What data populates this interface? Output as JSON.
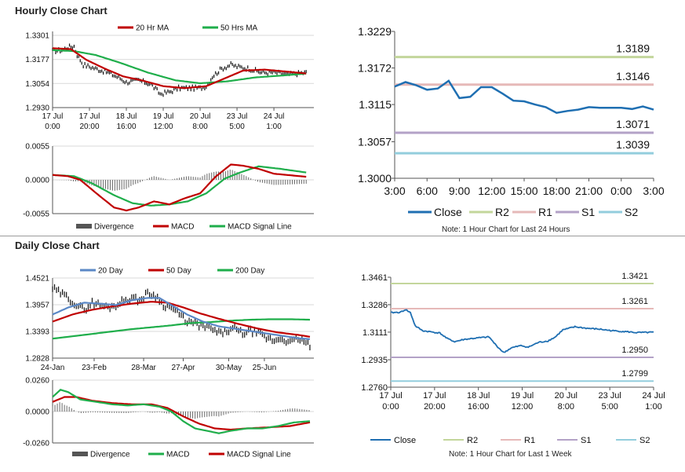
{
  "sections": {
    "hourly_title": "Hourly Close Chart",
    "daily_title": "Daily Close Chart"
  },
  "notes": {
    "hourly_note": "Note: 1 Hour Chart for Last 24 Hours",
    "daily_note": "Note: 1 Hour Chart for Last 1 Week"
  },
  "colors": {
    "red": "#c00000",
    "green": "#1fae4b",
    "blue": "#1f6fb2",
    "steel": "#5b88c6",
    "r2": "#c3d69b",
    "r1": "#e6b9b8",
    "s1": "#b3a2c7",
    "s2": "#93cddd",
    "grid": "#d9d9d9"
  },
  "chart_data": [
    {
      "id": "hourly_price",
      "type": "line",
      "title": "Hourly Close Chart",
      "ylim": [
        1.293,
        1.3301
      ],
      "yticks": [
        "1.3301",
        "1.3177",
        "1.3054",
        "1.2930"
      ],
      "ytick_values": [
        1.3301,
        1.3177,
        1.3054,
        1.293
      ],
      "xlim": [
        0,
        170
      ],
      "xticks": [
        {
          "x": 0,
          "line1": "17 Jul",
          "line2": "0:00"
        },
        {
          "x": 24,
          "line1": "17 Jul",
          "line2": "20:00"
        },
        {
          "x": 48,
          "line1": "18 Jul",
          "line2": "16:00"
        },
        {
          "x": 72,
          "line1": "19 Jul",
          "line2": "12:00"
        },
        {
          "x": 96,
          "line1": "20 Jul",
          "line2": "8:00"
        },
        {
          "x": 120,
          "line1": "23 Jul",
          "line2": "5:00"
        },
        {
          "x": 144,
          "line1": "24 Jul",
          "line2": "1:00"
        }
      ],
      "legend": [
        "20 Hr MA",
        "50 Hrs MA"
      ],
      "price_anchors": [
        [
          0,
          1.322
        ],
        [
          6,
          1.3225
        ],
        [
          10,
          1.324
        ],
        [
          14,
          1.3245
        ],
        [
          16,
          1.32
        ],
        [
          20,
          1.315
        ],
        [
          28,
          1.313
        ],
        [
          36,
          1.311
        ],
        [
          44,
          1.308
        ],
        [
          48,
          1.306
        ],
        [
          56,
          1.307
        ],
        [
          64,
          1.305
        ],
        [
          70,
          1.3
        ],
        [
          76,
          1.301
        ],
        [
          82,
          1.303
        ],
        [
          90,
          1.303
        ],
        [
          96,
          1.303
        ],
        [
          100,
          1.304
        ],
        [
          104,
          1.309
        ],
        [
          110,
          1.313
        ],
        [
          116,
          1.315
        ],
        [
          120,
          1.314
        ],
        [
          128,
          1.313
        ],
        [
          136,
          1.311
        ],
        [
          144,
          1.311
        ],
        [
          154,
          1.31
        ],
        [
          165,
          1.311
        ]
      ],
      "ma20_anchors": [
        [
          0,
          1.3235
        ],
        [
          12,
          1.323
        ],
        [
          22,
          1.3175
        ],
        [
          34,
          1.313
        ],
        [
          46,
          1.309
        ],
        [
          58,
          1.307
        ],
        [
          72,
          1.304
        ],
        [
          86,
          1.303
        ],
        [
          100,
          1.304
        ],
        [
          112,
          1.308
        ],
        [
          124,
          1.312
        ],
        [
          138,
          1.3125
        ],
        [
          152,
          1.3115
        ],
        [
          165,
          1.3105
        ]
      ],
      "ma50_anchors": [
        [
          0,
          1.3225
        ],
        [
          14,
          1.322
        ],
        [
          28,
          1.32
        ],
        [
          44,
          1.316
        ],
        [
          62,
          1.311
        ],
        [
          80,
          1.307
        ],
        [
          96,
          1.3055
        ],
        [
          114,
          1.3065
        ],
        [
          132,
          1.3085
        ],
        [
          150,
          1.3095
        ],
        [
          165,
          1.3105
        ]
      ]
    },
    {
      "id": "hourly_macd",
      "type": "line",
      "ylim": [
        -0.0055,
        0.0055
      ],
      "yticks": [
        "0.0055",
        "0.0000",
        "-0.0055"
      ],
      "ytick_values": [
        0.0055,
        0.0,
        -0.0055
      ],
      "xlim": [
        0,
        170
      ],
      "legend": [
        "Divergence",
        "MACD",
        "MACD Signal Line"
      ],
      "macd_anchors": [
        [
          0,
          0.0008
        ],
        [
          10,
          0.0006
        ],
        [
          18,
          0.0
        ],
        [
          30,
          -0.0025
        ],
        [
          40,
          -0.0045
        ],
        [
          48,
          -0.005
        ],
        [
          56,
          -0.0045
        ],
        [
          66,
          -0.0035
        ],
        [
          76,
          -0.004
        ],
        [
          86,
          -0.003
        ],
        [
          96,
          -0.0022
        ],
        [
          106,
          0.0005
        ],
        [
          116,
          0.0025
        ],
        [
          124,
          0.0023
        ],
        [
          134,
          0.0018
        ],
        [
          144,
          0.001
        ],
        [
          165,
          0.0005
        ]
      ],
      "signal_anchors": [
        [
          0,
          0.0008
        ],
        [
          14,
          0.0006
        ],
        [
          26,
          -0.0006
        ],
        [
          40,
          -0.0025
        ],
        [
          52,
          -0.0038
        ],
        [
          64,
          -0.0042
        ],
        [
          76,
          -0.004
        ],
        [
          88,
          -0.0035
        ],
        [
          100,
          -0.0022
        ],
        [
          112,
          0.0002
        ],
        [
          122,
          0.0012
        ],
        [
          134,
          0.0022
        ],
        [
          148,
          0.0018
        ],
        [
          165,
          0.0012
        ]
      ]
    },
    {
      "id": "hourly_levels",
      "type": "line",
      "ylim": [
        1.3,
        1.3229
      ],
      "yticks": [
        "1.3229",
        "1.3172",
        "1.3115",
        "1.3057",
        "1.3000"
      ],
      "ytick_values": [
        1.3229,
        1.3172,
        1.3115,
        1.3057,
        1.3
      ],
      "xticks": [
        "3:00",
        "6:00",
        "9:00",
        "12:00",
        "15:00",
        "18:00",
        "21:00",
        "0:00",
        "3:00"
      ],
      "levels": {
        "R2": 1.3189,
        "R1": 1.3146,
        "S1": 1.3071,
        "S2": 1.3039
      },
      "level_labels": [
        "1.3189",
        "1.3146",
        "1.3071",
        "1.3039"
      ],
      "close": [
        1.3143,
        1.315,
        1.3145,
        1.3138,
        1.314,
        1.3152,
        1.3125,
        1.3127,
        1.3142,
        1.3142,
        1.3132,
        1.3121,
        1.312,
        1.3115,
        1.3111,
        1.3102,
        1.3105,
        1.3107,
        1.3111,
        1.311,
        1.311,
        1.311,
        1.3108,
        1.3112,
        1.3107
      ],
      "legend": [
        "Close",
        "R2",
        "R1",
        "S1",
        "S2"
      ]
    },
    {
      "id": "daily_price",
      "type": "line",
      "title": "Daily Close Chart",
      "ylim": [
        1.2828,
        1.4521
      ],
      "yticks": [
        "1.4521",
        "1.3957",
        "1.3393",
        "1.2828"
      ],
      "ytick_values": [
        1.4521,
        1.3957,
        1.3393,
        1.2828
      ],
      "xlim": [
        0,
        132
      ],
      "xticks": [
        {
          "x": 0,
          "label": "24-Jan"
        },
        {
          "x": 21,
          "label": "23-Feb"
        },
        {
          "x": 46,
          "label": "28-Mar"
        },
        {
          "x": 66,
          "label": "27-Apr"
        },
        {
          "x": 89,
          "label": "30-May"
        },
        {
          "x": 107,
          "label": "25-Jun"
        }
      ],
      "legend": [
        "20 Day",
        "50 Day",
        "200 Day"
      ],
      "price_anchors": [
        [
          0,
          1.43
        ],
        [
          4,
          1.42
        ],
        [
          8,
          1.41
        ],
        [
          12,
          1.395
        ],
        [
          16,
          1.385
        ],
        [
          20,
          1.4
        ],
        [
          24,
          1.395
        ],
        [
          28,
          1.39
        ],
        [
          32,
          1.395
        ],
        [
          36,
          1.405
        ],
        [
          40,
          1.41
        ],
        [
          44,
          1.405
        ],
        [
          48,
          1.42
        ],
        [
          52,
          1.415
        ],
        [
          56,
          1.395
        ],
        [
          60,
          1.39
        ],
        [
          64,
          1.375
        ],
        [
          68,
          1.36
        ],
        [
          72,
          1.355
        ],
        [
          76,
          1.35
        ],
        [
          80,
          1.345
        ],
        [
          84,
          1.335
        ],
        [
          88,
          1.34
        ],
        [
          92,
          1.345
        ],
        [
          96,
          1.335
        ],
        [
          100,
          1.34
        ],
        [
          104,
          1.335
        ],
        [
          108,
          1.325
        ],
        [
          112,
          1.32
        ],
        [
          116,
          1.325
        ],
        [
          120,
          1.315
        ],
        [
          124,
          1.325
        ],
        [
          130,
          1.31
        ]
      ],
      "ma20_anchors": [
        [
          0,
          1.375
        ],
        [
          8,
          1.39
        ],
        [
          16,
          1.4
        ],
        [
          24,
          1.398
        ],
        [
          32,
          1.395
        ],
        [
          40,
          1.405
        ],
        [
          48,
          1.41
        ],
        [
          54,
          1.41
        ],
        [
          60,
          1.395
        ],
        [
          68,
          1.375
        ],
        [
          76,
          1.36
        ],
        [
          84,
          1.35
        ],
        [
          92,
          1.345
        ],
        [
          100,
          1.34
        ],
        [
          108,
          1.335
        ],
        [
          116,
          1.33
        ],
        [
          124,
          1.325
        ],
        [
          130,
          1.323
        ]
      ],
      "ma50_anchors": [
        [
          0,
          1.36
        ],
        [
          10,
          1.375
        ],
        [
          20,
          1.385
        ],
        [
          30,
          1.392
        ],
        [
          40,
          1.398
        ],
        [
          50,
          1.402
        ],
        [
          58,
          1.4
        ],
        [
          66,
          1.39
        ],
        [
          74,
          1.378
        ],
        [
          84,
          1.366
        ],
        [
          94,
          1.355
        ],
        [
          104,
          1.345
        ],
        [
          114,
          1.337
        ],
        [
          124,
          1.332
        ],
        [
          130,
          1.328
        ]
      ],
      "ma200_anchors": [
        [
          0,
          1.324
        ],
        [
          20,
          1.334
        ],
        [
          40,
          1.344
        ],
        [
          60,
          1.352
        ],
        [
          70,
          1.357
        ],
        [
          80,
          1.359
        ],
        [
          90,
          1.362
        ],
        [
          100,
          1.364
        ],
        [
          110,
          1.365
        ],
        [
          120,
          1.365
        ],
        [
          130,
          1.364
        ]
      ]
    },
    {
      "id": "daily_macd",
      "type": "line",
      "ylim": [
        -0.026,
        0.026
      ],
      "yticks": [
        "0.0260",
        "0.0000",
        "-0.0260"
      ],
      "ytick_values": [
        0.026,
        0.0,
        -0.026
      ],
      "xlim": [
        0,
        132
      ],
      "legend": [
        "Divergence",
        "MACD",
        "MACD Signal Line"
      ],
      "macd_anchors": [
        [
          0,
          0.012
        ],
        [
          4,
          0.018
        ],
        [
          8,
          0.016
        ],
        [
          14,
          0.01
        ],
        [
          22,
          0.008
        ],
        [
          30,
          0.006
        ],
        [
          38,
          0.005
        ],
        [
          46,
          0.006
        ],
        [
          54,
          0.004
        ],
        [
          60,
          0.0
        ],
        [
          66,
          -0.008
        ],
        [
          72,
          -0.014
        ],
        [
          78,
          -0.016
        ],
        [
          84,
          -0.018
        ],
        [
          90,
          -0.016
        ],
        [
          98,
          -0.014
        ],
        [
          106,
          -0.014
        ],
        [
          114,
          -0.012
        ],
        [
          122,
          -0.009
        ],
        [
          130,
          -0.008
        ]
      ],
      "signal_anchors": [
        [
          0,
          0.008
        ],
        [
          6,
          0.012
        ],
        [
          12,
          0.012
        ],
        [
          20,
          0.009
        ],
        [
          30,
          0.007
        ],
        [
          40,
          0.006
        ],
        [
          50,
          0.006
        ],
        [
          58,
          0.003
        ],
        [
          66,
          -0.004
        ],
        [
          74,
          -0.01
        ],
        [
          82,
          -0.014
        ],
        [
          90,
          -0.015
        ],
        [
          98,
          -0.014
        ],
        [
          110,
          -0.013
        ],
        [
          120,
          -0.012
        ],
        [
          130,
          -0.009
        ]
      ]
    },
    {
      "id": "daily_levels",
      "type": "line",
      "ylim": [
        1.276,
        1.3461
      ],
      "yticks": [
        "1.3461",
        "1.3286",
        "1.3111",
        "1.2935",
        "1.2760"
      ],
      "ytick_values": [
        1.3461,
        1.3286,
        1.3111,
        1.2935,
        1.276
      ],
      "xticks": [
        {
          "line1": "17 Jul",
          "line2": "0:00"
        },
        {
          "line1": "17 Jul",
          "line2": "20:00"
        },
        {
          "line1": "18 Jul",
          "line2": "16:00"
        },
        {
          "line1": "19 Jul",
          "line2": "12:00"
        },
        {
          "line1": "20 Jul",
          "line2": "8:00"
        },
        {
          "line1": "23 Jul",
          "line2": "5:00"
        },
        {
          "line1": "24 Jul",
          "line2": "1:00"
        }
      ],
      "levels": {
        "R2": 1.3421,
        "R1": 1.3261,
        "S1": 1.295,
        "S2": 1.2799
      },
      "level_labels": [
        "1.3421",
        "1.3261",
        "1.2950",
        "1.2799"
      ],
      "close_anchors": [
        [
          0,
          1.3235
        ],
        [
          8,
          1.3238
        ],
        [
          12,
          1.3255
        ],
        [
          16,
          1.3235
        ],
        [
          20,
          1.315
        ],
        [
          26,
          1.312
        ],
        [
          40,
          1.3105
        ],
        [
          46,
          1.307
        ],
        [
          52,
          1.305
        ],
        [
          60,
          1.3065
        ],
        [
          72,
          1.3075
        ],
        [
          80,
          1.308
        ],
        [
          86,
          1.3025
        ],
        [
          92,
          1.298
        ],
        [
          98,
          1.301
        ],
        [
          106,
          1.3025
        ],
        [
          112,
          1.3015
        ],
        [
          120,
          1.3045
        ],
        [
          128,
          1.3055
        ],
        [
          134,
          1.308
        ],
        [
          140,
          1.3125
        ],
        [
          150,
          1.3145
        ],
        [
          160,
          1.3135
        ],
        [
          170,
          1.313
        ],
        [
          180,
          1.312
        ],
        [
          190,
          1.3115
        ],
        [
          200,
          1.3108
        ],
        [
          214,
          1.311
        ]
      ],
      "legend": [
        "Close",
        "R2",
        "R1",
        "S1",
        "S2"
      ]
    }
  ]
}
